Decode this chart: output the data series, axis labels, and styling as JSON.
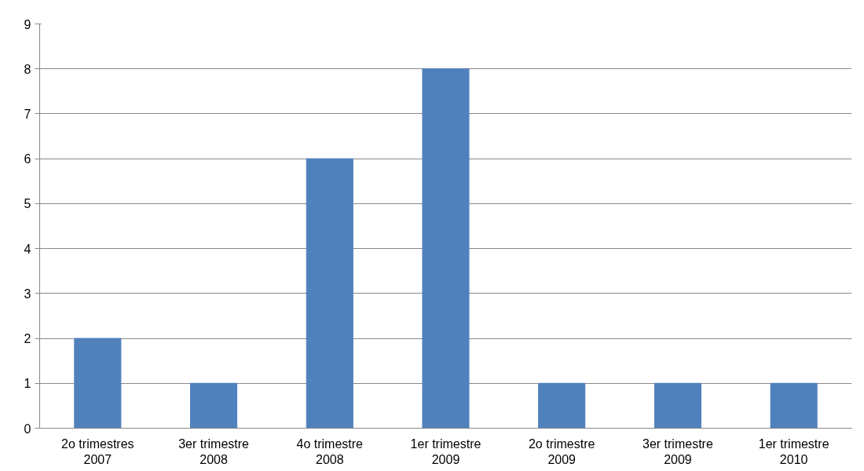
{
  "chart_data": {
    "type": "bar",
    "categories": [
      "2o trimestres\n2007",
      "3er trimestre\n2008",
      "4o trimestre\n2008",
      "1er trimestre\n2009",
      "2o trimestre\n2009",
      "3er trimestre\n2009",
      "1er trimestre\n2010"
    ],
    "values": [
      2,
      1,
      6,
      8,
      1,
      1,
      1
    ],
    "color": "#4f81bd",
    "ylim": [
      0,
      9
    ],
    "yticks": [
      0,
      1,
      2,
      3,
      4,
      5,
      6,
      7,
      8,
      9
    ],
    "grid": "y"
  }
}
